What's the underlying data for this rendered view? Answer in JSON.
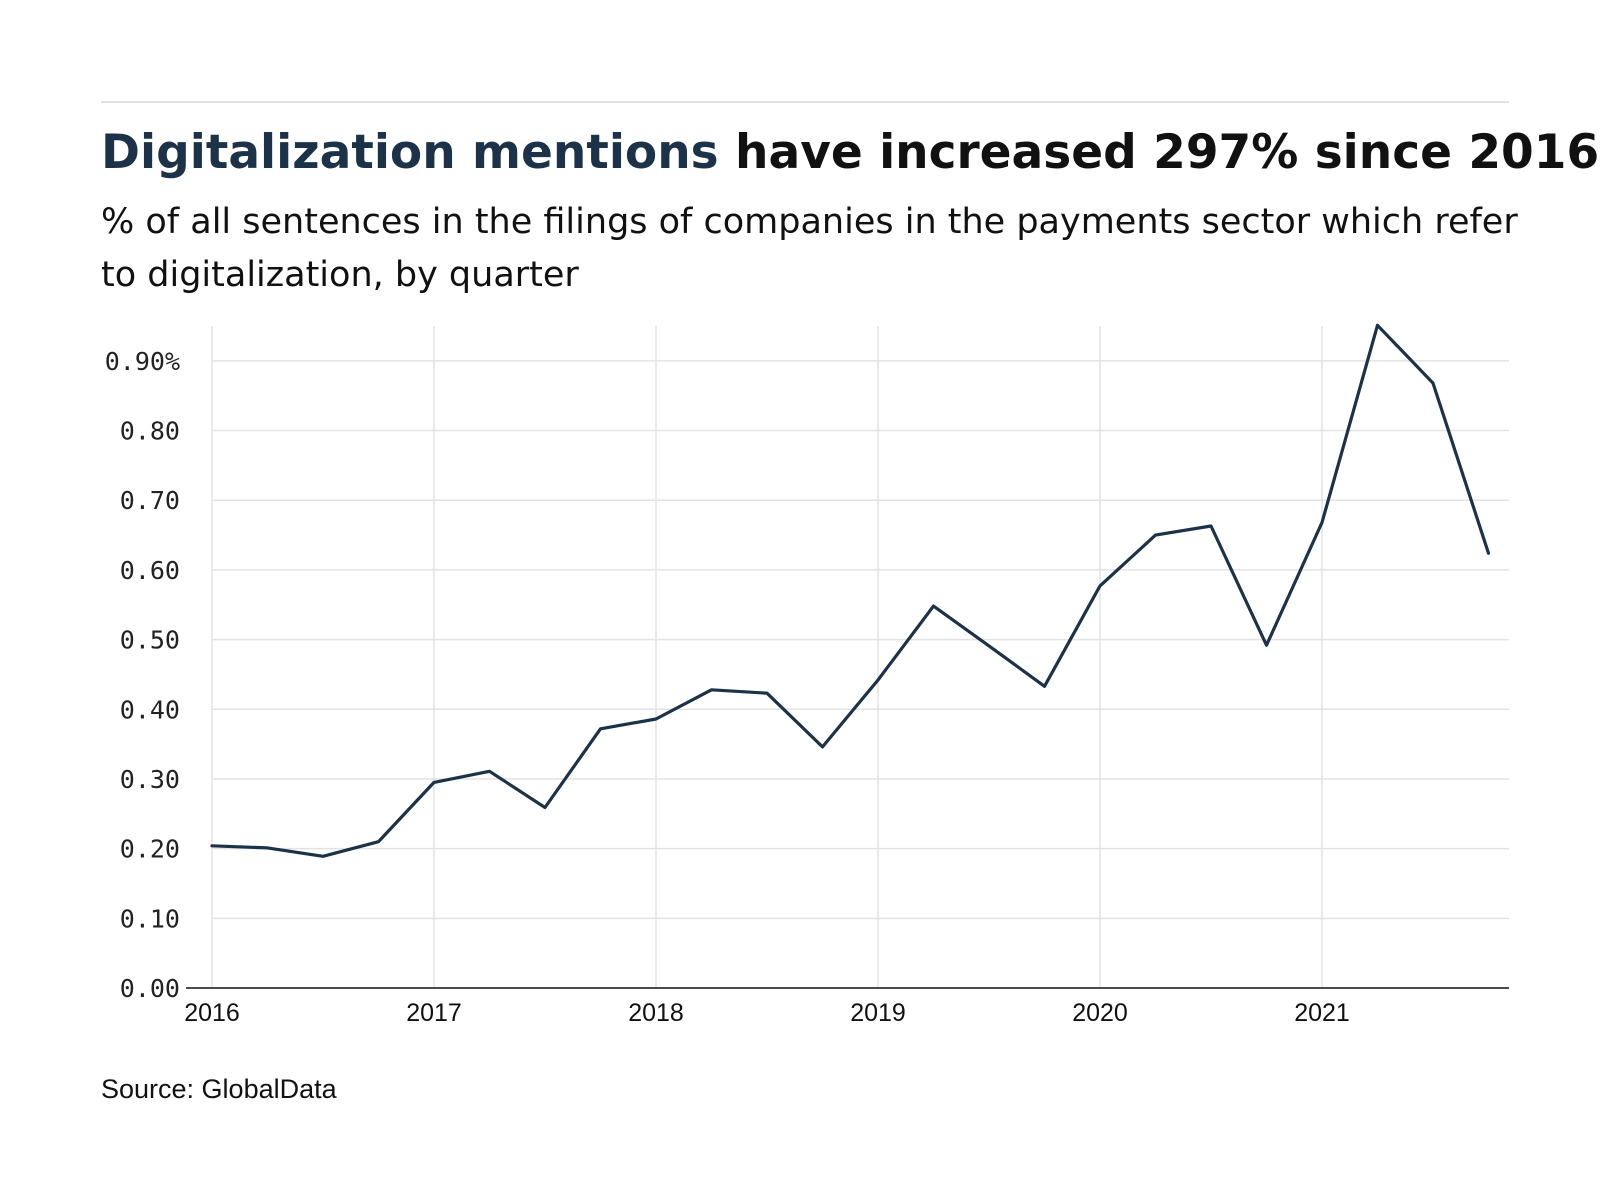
{
  "header": {
    "title_highlight": "Digitalization mentions",
    "title_rest": " have increased 297% since 2016",
    "subtitle": "% of all sentences in the filings of companies in the payments sector which refer to digitalization, by quarter"
  },
  "footer": {
    "source": "Source: GlobalData"
  },
  "colors": {
    "line": "#1b3248",
    "highlight": "#1b3248",
    "grid": "#e3e3e3",
    "axis": "#111111"
  },
  "chart_data": {
    "type": "line",
    "title": "Digitalization mentions have increased 297% since 2016",
    "subtitle": "% of all sentences in the filings of companies in the payments sector which refer to digitalization, by quarter",
    "xlabel": "",
    "ylabel": "",
    "x": [
      "2016 Q1",
      "2016 Q2",
      "2016 Q3",
      "2016 Q4",
      "2017 Q1",
      "2017 Q2",
      "2017 Q3",
      "2017 Q4",
      "2018 Q1",
      "2018 Q2",
      "2018 Q3",
      "2018 Q4",
      "2019 Q1",
      "2019 Q2",
      "2019 Q3",
      "2019 Q4",
      "2020 Q1",
      "2020 Q2",
      "2020 Q3",
      "2020 Q4",
      "2021 Q1",
      "2021 Q2",
      "2021 Q3",
      "2021 Q4"
    ],
    "series": [
      {
        "values": [
          0.204,
          0.201,
          0.189,
          0.21,
          0.295,
          0.311,
          0.259,
          0.372,
          0.386,
          0.428,
          0.423,
          0.346,
          0.442,
          0.548,
          0.491,
          0.433,
          0.577,
          0.65,
          0.663,
          0.492,
          0.668,
          0.951,
          0.868,
          0.624
        ]
      }
    ],
    "x_ticks": [
      "2016",
      "2017",
      "2018",
      "2019",
      "2020",
      "2021"
    ],
    "y_ticks": [
      "0.00",
      "0.10",
      "0.20",
      "0.30",
      "0.40",
      "0.50",
      "0.60",
      "0.70",
      "0.80",
      "0.90%"
    ],
    "y_tick_values": [
      0,
      0.1,
      0.2,
      0.3,
      0.4,
      0.5,
      0.6,
      0.7,
      0.8,
      0.9
    ],
    "ylim": [
      0,
      0.95
    ],
    "grid": true,
    "legend": "none"
  }
}
